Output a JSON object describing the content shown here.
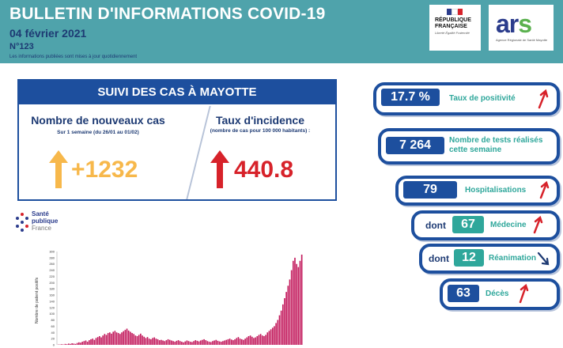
{
  "header": {
    "title": "BULLETIN D'INFORMATIONS COVID-19",
    "date": "04 février 2021",
    "number": "N°123",
    "note": "Les informations publiées sont mises à jour quotidiennement"
  },
  "logos": {
    "republique": "RÉPUBLIQUE FRANÇAISE",
    "motto": "Liberté Égalité Fraternité",
    "ars": "ar",
    "ars_s": "s",
    "ars_sub": "Agence Régionale de Santé Mayotte",
    "sante_line1": "Santé",
    "sante_line2": "publique",
    "sante_line3": "France"
  },
  "suivi": {
    "title": "SUIVI DES CAS À MAYOTTE",
    "new_cases_title": "Nombre de nouveaux cas",
    "new_cases_sub": "Sur 1 semaine (du 26/01 au 01/02)",
    "new_cases_value": "+1232",
    "incidence_title": "Taux d'incidence",
    "incidence_sub": "(nombre de cas pour 100 000 habitants) :",
    "incidence_value": "440.8"
  },
  "indicators": [
    {
      "prefix": "",
      "value": "17.7 %",
      "label": "Taux de positivité",
      "trend": "up"
    },
    {
      "prefix": "",
      "value": "7 264",
      "label": "Nombre de tests réalisés cette semaine",
      "trend": "none"
    },
    {
      "prefix": "",
      "value": "79",
      "label": "Hospitalisations",
      "trend": "up"
    },
    {
      "prefix": "dont",
      "value": "67",
      "label": "Médecine",
      "trend": "up"
    },
    {
      "prefix": "dont",
      "value": "12",
      "label": "Réanimation",
      "trend": "down"
    },
    {
      "prefix": "",
      "value": "63",
      "label": "Décès",
      "trend": "up"
    }
  ],
  "colors": {
    "header_bg": "#4fa3ab",
    "navy": "#1d4f9e",
    "teal": "#2fa79b",
    "orange": "#f7b84b",
    "red": "#d7222a",
    "bar": "#c2185b"
  },
  "chart_data": {
    "type": "bar",
    "ylabel": "Nombre de patient positifs",
    "ylim": [
      0,
      300
    ],
    "yticks": [
      "0",
      "20",
      "40",
      "60",
      "80",
      "100",
      "120",
      "140",
      "160",
      "180",
      "200",
      "220",
      "240",
      "260",
      "280",
      "300"
    ],
    "values": [
      1,
      1,
      2,
      1,
      3,
      2,
      4,
      3,
      5,
      4,
      3,
      6,
      8,
      7,
      10,
      12,
      14,
      10,
      15,
      18,
      20,
      16,
      22,
      25,
      28,
      24,
      30,
      35,
      32,
      38,
      40,
      36,
      42,
      45,
      40,
      38,
      35,
      40,
      44,
      48,
      52,
      46,
      42,
      38,
      35,
      30,
      28,
      32,
      36,
      30,
      26,
      22,
      25,
      20,
      18,
      22,
      24,
      20,
      18,
      15,
      16,
      14,
      12,
      15,
      18,
      16,
      14,
      12,
      10,
      13,
      15,
      12,
      10,
      8,
      11,
      14,
      12,
      10,
      9,
      12,
      15,
      13,
      11,
      14,
      16,
      18,
      15,
      12,
      10,
      9,
      12,
      14,
      16,
      13,
      11,
      10,
      12,
      14,
      16,
      18,
      20,
      17,
      15,
      18,
      22,
      25,
      20,
      18,
      16,
      20,
      24,
      28,
      30,
      26,
      22,
      24,
      28,
      32,
      35,
      30,
      28,
      32,
      40,
      45,
      50,
      55,
      60,
      70,
      80,
      95,
      110,
      130,
      150,
      170,
      190,
      210,
      240,
      270,
      280,
      260,
      250,
      270,
      290
    ]
  }
}
